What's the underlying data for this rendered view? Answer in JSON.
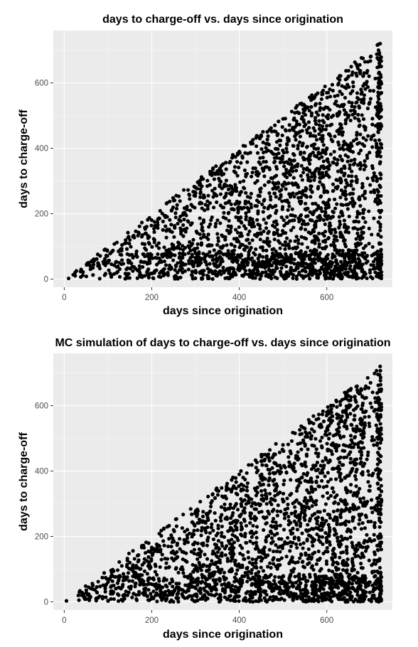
{
  "chart_data": [
    {
      "type": "scatter",
      "title": "days to charge-off vs. days since origination",
      "xlabel": "days since origination",
      "ylabel": "days to charge-off",
      "xlim": [
        -25,
        750
      ],
      "ylim": [
        -25,
        760
      ],
      "xticks": [
        0,
        200,
        400,
        600
      ],
      "yticks": [
        0,
        200,
        400,
        600
      ],
      "grid": true,
      "background": "#ebebeb",
      "point_color": "#000000",
      "point_count": 2600,
      "distribution": "points fill the triangle 0 <= days to charge-off <= days since origination, x from ~10 to ~725, dense near y=0 and along right edge",
      "seed": 17,
      "points": [
        [
          10,
          2
        ],
        [
          25,
          10
        ],
        [
          60,
          30
        ],
        [
          100,
          50
        ],
        [
          150,
          120
        ],
        [
          200,
          180
        ],
        [
          250,
          240
        ],
        [
          300,
          280
        ],
        [
          350,
          330
        ],
        [
          400,
          390
        ],
        [
          450,
          440
        ],
        [
          500,
          490
        ],
        [
          550,
          520
        ],
        [
          600,
          570
        ],
        [
          650,
          620
        ],
        [
          700,
          680
        ],
        [
          722,
          720
        ],
        [
          720,
          5
        ],
        [
          500,
          10
        ],
        [
          300,
          20
        ]
      ]
    },
    {
      "type": "scatter",
      "title": "MC simulation of days to charge-off vs. days since origination",
      "xlabel": "days since origination",
      "ylabel": "days to charge-off",
      "xlim": [
        -25,
        750
      ],
      "ylim": [
        -25,
        760
      ],
      "xticks": [
        0,
        200,
        400,
        600
      ],
      "yticks": [
        0,
        200,
        400,
        600
      ],
      "grid": true,
      "background": "#ebebeb",
      "point_color": "#000000",
      "point_count": 2600,
      "distribution": "simulated points fill the triangle 0 <= days to charge-off <= days since origination, x from ~5 to ~725",
      "seed": 91,
      "points": [
        [
          5,
          3
        ],
        [
          40,
          20
        ],
        [
          100,
          60
        ],
        [
          150,
          120
        ],
        [
          200,
          160
        ],
        [
          250,
          220
        ],
        [
          300,
          270
        ],
        [
          350,
          340
        ],
        [
          400,
          390
        ],
        [
          450,
          430
        ],
        [
          500,
          480
        ],
        [
          550,
          530
        ],
        [
          600,
          580
        ],
        [
          650,
          630
        ],
        [
          700,
          670
        ],
        [
          722,
          720
        ],
        [
          720,
          8
        ],
        [
          450,
          5
        ],
        [
          200,
          15
        ]
      ]
    }
  ]
}
